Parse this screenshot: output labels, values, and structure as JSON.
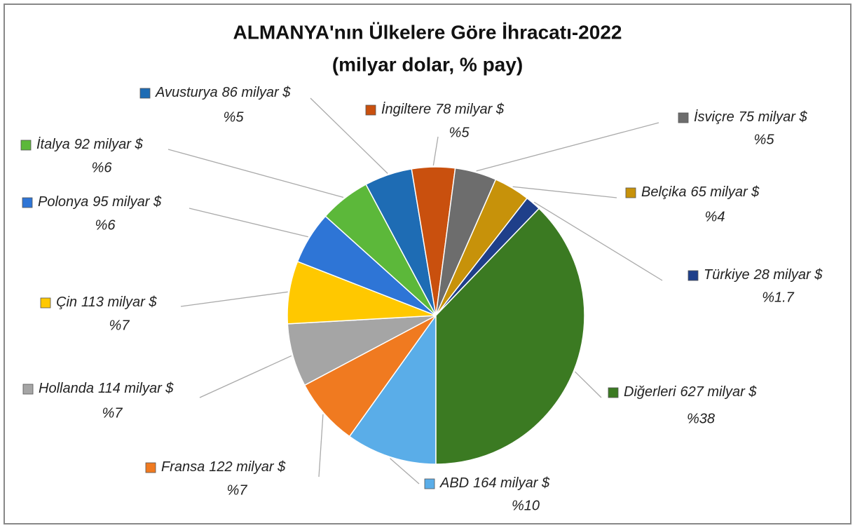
{
  "chart_data": {
    "type": "pie",
    "title": [
      "ALMANYA'nın Ülkelere Göre İhracatı-2022",
      "(milyar dolar, % pay)"
    ],
    "categories": [
      "ABD",
      "Fransa",
      "Hollanda",
      "Çin",
      "Polonya",
      "İtalya",
      "Avusturya",
      "İngiltere",
      "İsviçre",
      "Belçika",
      "Türkiye",
      "Diğerleri"
    ],
    "values": [
      164,
      122,
      114,
      113,
      95,
      92,
      86,
      78,
      75,
      65,
      28,
      627
    ],
    "value_labels": [
      "164 milyar $",
      "122 milyar $",
      "114 milyar $",
      "113 milyar $",
      "95 milyar $",
      "92 milyar $",
      "86 milyar $",
      "78 milyar $",
      "75 milyar $",
      "65 milyar $",
      "28 milyar $",
      "627 milyar $"
    ],
    "share_labels": [
      "%10",
      "%7",
      "%7",
      "%7",
      "%6",
      "%6",
      "%5",
      "%5",
      "%5",
      "%4",
      "%1.7",
      "%38"
    ],
    "colors": [
      "#5aade8",
      "#f07a20",
      "#a5a5a5",
      "#ffc800",
      "#2e75d6",
      "#5cb83a",
      "#1e6cb4",
      "#c9500e",
      "#6d6d6d",
      "#c7920a",
      "#1f3f8a",
      "#3b7a22"
    ]
  }
}
